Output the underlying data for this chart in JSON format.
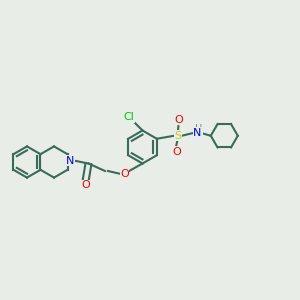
{
  "background_color": "#e8ede8",
  "bond_color": "#3a6b5a",
  "bond_width": 1.5,
  "atom_colors": {
    "N": "#0000ff",
    "O": "#ff0000",
    "S": "#cccc00",
    "Cl": "#00cc00",
    "H": "#808080",
    "C": "#3a6b5a"
  },
  "font_size": 7
}
